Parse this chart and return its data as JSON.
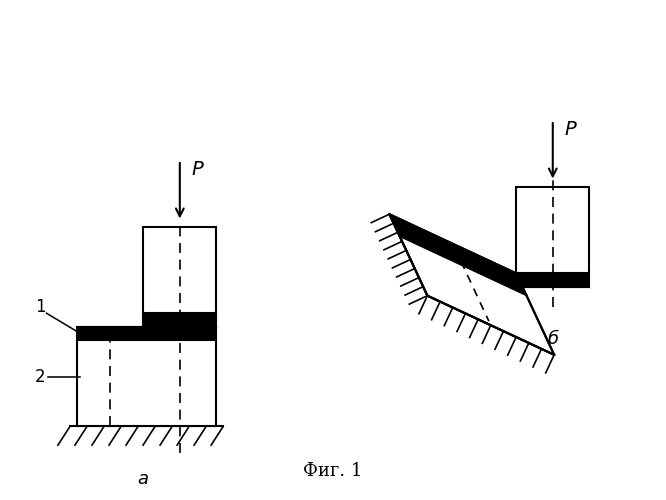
{
  "bg_color": "#ffffff",
  "line_color": "#000000",
  "title": "Фиг. 1",
  "label_a": "а",
  "label_b": "б",
  "label_P": "P",
  "label_1": "1",
  "label_2": "2",
  "fig_width": 6.66,
  "fig_height": 5.0,
  "dpi": 100
}
